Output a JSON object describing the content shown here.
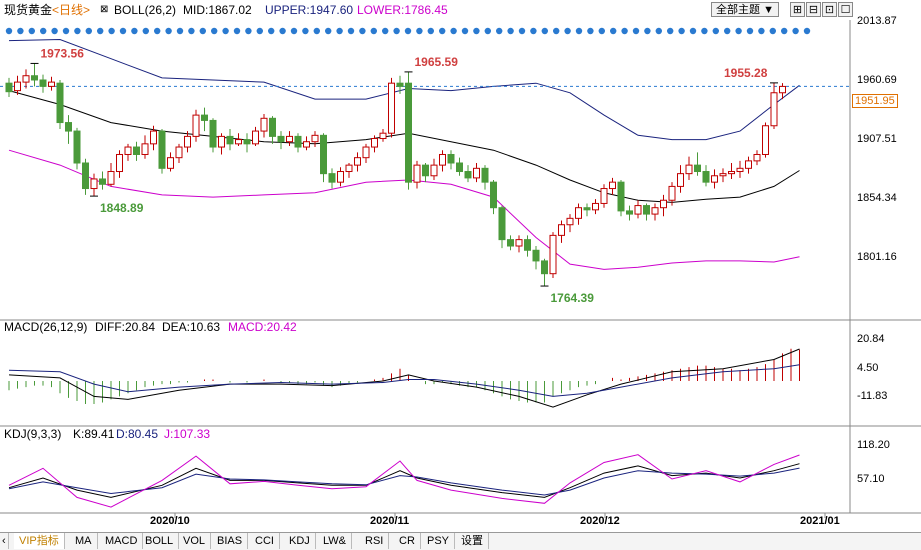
{
  "header": {
    "instrument": "现货黄金",
    "period": "<日线>",
    "indicator": "BOLL(26,2)",
    "mid": "MID:1867.02",
    "upper": "UPPER:1947.60",
    "lower": "LOWER:1786.45",
    "theme_select": "全部主题",
    "theme_chevron": "▼"
  },
  "price_axis": {
    "ticks": [
      "2013.87",
      "1960.69",
      "1907.51",
      "1854.34",
      "1801.16"
    ],
    "current": "1951.95"
  },
  "macd_header": {
    "title": "MACD(26,12,9)",
    "diff": "DIFF:20.84",
    "dea": "DEA:10.63",
    "macd": "MACD:20.42"
  },
  "macd_axis": [
    "20.84",
    "4.50",
    "-11.83"
  ],
  "kdj_header": {
    "title": "KDJ(9,3,3)",
    "k": "K:89.41",
    "d": "D:80.45",
    "j": "J:107.33"
  },
  "kdj_axis": [
    "118.20",
    "57.10"
  ],
  "date_axis": [
    "2020/10",
    "2020/11",
    "2020/12",
    "2021/01"
  ],
  "toolbar": [
    "VIP指标",
    "MA",
    "MACD",
    "BOLL",
    "VOL",
    "BIAS",
    "CCI",
    "KDJ",
    "LW&",
    "RSI",
    "CR",
    "PSY",
    "设置"
  ],
  "colors": {
    "up": "#c00000",
    "down": "#4a9a3a",
    "upper_band": "#1a237e",
    "mid_band": "#000000",
    "lower_band": "#cc00cc",
    "accent": "#e07000"
  },
  "chart_data": {
    "type": "candlestick",
    "title": "现货黄金 <日线>",
    "ylim": [
      1740,
      2020
    ],
    "annotations": [
      {
        "label": "1973.56",
        "value": 1973.56,
        "kind": "high",
        "candle_index": 3
      },
      {
        "label": "1848.89",
        "value": 1848.89,
        "kind": "low",
        "candle_index": 10
      },
      {
        "label": "1965.59",
        "value": 1965.59,
        "kind": "high",
        "candle_index": 47
      },
      {
        "label": "1764.39",
        "value": 1764.39,
        "kind": "low",
        "candle_index": 63
      },
      {
        "label": "1955.28",
        "value": 1955.28,
        "kind": "high",
        "candle_index": 90
      }
    ],
    "candles": [
      [
        1955,
        1947,
        1960,
        1942
      ],
      [
        1948,
        1956,
        1962,
        1944
      ],
      [
        1956,
        1962,
        1968,
        1950
      ],
      [
        1962,
        1958,
        1973.56,
        1952
      ],
      [
        1958,
        1952,
        1963,
        1946
      ],
      [
        1952,
        1956,
        1961,
        1948
      ],
      [
        1955,
        1918,
        1958,
        1912
      ],
      [
        1918,
        1910,
        1925,
        1898
      ],
      [
        1910,
        1880,
        1913,
        1874
      ],
      [
        1880,
        1856,
        1884,
        1850
      ],
      [
        1856,
        1865,
        1870,
        1848.89
      ],
      [
        1865,
        1860,
        1872,
        1855
      ],
      [
        1860,
        1872,
        1880,
        1858
      ],
      [
        1872,
        1888,
        1892,
        1866
      ],
      [
        1888,
        1895,
        1898,
        1882
      ],
      [
        1895,
        1888,
        1900,
        1882
      ],
      [
        1888,
        1898,
        1906,
        1884
      ],
      [
        1898,
        1910,
        1915,
        1892
      ],
      [
        1910,
        1875,
        1912,
        1870
      ],
      [
        1875,
        1885,
        1890,
        1872
      ],
      [
        1885,
        1895,
        1898,
        1880
      ],
      [
        1895,
        1905,
        1910,
        1890
      ],
      [
        1905,
        1925,
        1930,
        1900
      ],
      [
        1925,
        1920,
        1932,
        1910
      ],
      [
        1920,
        1895,
        1922,
        1890
      ],
      [
        1895,
        1905,
        1908,
        1888
      ],
      [
        1905,
        1898,
        1912,
        1892
      ],
      [
        1898,
        1902,
        1908,
        1896
      ],
      [
        1902,
        1898,
        1908,
        1890
      ],
      [
        1898,
        1910,
        1914,
        1896
      ],
      [
        1910,
        1922,
        1926,
        1904
      ],
      [
        1922,
        1905,
        1924,
        1898
      ],
      [
        1905,
        1900,
        1910,
        1893
      ],
      [
        1900,
        1905,
        1910,
        1896
      ],
      [
        1905,
        1895,
        1908,
        1890
      ],
      [
        1895,
        1900,
        1905,
        1892
      ],
      [
        1900,
        1906,
        1910,
        1895
      ],
      [
        1906,
        1870,
        1908,
        1862
      ],
      [
        1870,
        1862,
        1875,
        1856
      ],
      [
        1862,
        1872,
        1876,
        1858
      ],
      [
        1872,
        1878,
        1880,
        1866
      ],
      [
        1878,
        1885,
        1890,
        1872
      ],
      [
        1885,
        1895,
        1898,
        1880
      ],
      [
        1895,
        1903,
        1906,
        1890
      ],
      [
        1903,
        1908,
        1912,
        1900
      ],
      [
        1908,
        1955,
        1960,
        1904
      ],
      [
        1955,
        1952,
        1962,
        1945
      ],
      [
        1955,
        1862,
        1965.59,
        1855
      ],
      [
        1862,
        1878,
        1882,
        1856
      ],
      [
        1878,
        1868,
        1880,
        1862
      ],
      [
        1868,
        1878,
        1884,
        1864
      ],
      [
        1878,
        1888,
        1892,
        1872
      ],
      [
        1888,
        1880,
        1892,
        1874
      ],
      [
        1880,
        1872,
        1885,
        1868
      ],
      [
        1872,
        1866,
        1878,
        1862
      ],
      [
        1866,
        1875,
        1880,
        1862
      ],
      [
        1875,
        1862,
        1878,
        1855
      ],
      [
        1862,
        1838,
        1864,
        1832
      ],
      [
        1838,
        1808,
        1840,
        1800
      ],
      [
        1808,
        1802,
        1812,
        1798
      ],
      [
        1802,
        1808,
        1812,
        1796
      ],
      [
        1808,
        1798,
        1812,
        1792
      ],
      [
        1798,
        1788,
        1802,
        1780
      ],
      [
        1788,
        1776,
        1790,
        1764.39
      ],
      [
        1776,
        1812,
        1815,
        1772
      ],
      [
        1812,
        1822,
        1826,
        1805
      ],
      [
        1822,
        1828,
        1832,
        1815
      ],
      [
        1828,
        1838,
        1842,
        1822
      ],
      [
        1838,
        1836,
        1842,
        1830
      ],
      [
        1836,
        1842,
        1846,
        1832
      ],
      [
        1842,
        1856,
        1860,
        1838
      ],
      [
        1856,
        1862,
        1866,
        1850
      ],
      [
        1862,
        1835,
        1864,
        1830
      ],
      [
        1835,
        1832,
        1840,
        1826
      ],
      [
        1832,
        1840,
        1845,
        1828
      ],
      [
        1840,
        1832,
        1842,
        1826
      ],
      [
        1832,
        1838,
        1842,
        1826
      ],
      [
        1838,
        1845,
        1850,
        1830
      ],
      [
        1845,
        1858,
        1862,
        1840
      ],
      [
        1858,
        1870,
        1878,
        1852
      ],
      [
        1870,
        1878,
        1886,
        1864
      ],
      [
        1878,
        1872,
        1890,
        1868
      ],
      [
        1872,
        1862,
        1878,
        1858
      ],
      [
        1862,
        1868,
        1874,
        1856
      ],
      [
        1868,
        1870,
        1875,
        1862
      ],
      [
        1870,
        1872,
        1880,
        1865
      ],
      [
        1872,
        1875,
        1882,
        1866
      ],
      [
        1875,
        1882,
        1886,
        1870
      ],
      [
        1882,
        1888,
        1892,
        1878
      ],
      [
        1888,
        1915,
        1918,
        1885
      ],
      [
        1915,
        1946,
        1955.28,
        1912
      ],
      [
        1946,
        1951.95,
        1955,
        1940
      ]
    ],
    "boll": {
      "upper": [
        [
          0,
          1995
        ],
        [
          6,
          1996
        ],
        [
          12,
          1978
        ],
        [
          18,
          1960
        ],
        [
          24,
          1958
        ],
        [
          30,
          1956
        ],
        [
          36,
          1940
        ],
        [
          42,
          1940
        ],
        [
          47,
          1950
        ],
        [
          52,
          1948
        ],
        [
          57,
          1952
        ],
        [
          62,
          1955
        ],
        [
          66,
          1946
        ],
        [
          70,
          1925
        ],
        [
          74,
          1906
        ],
        [
          78,
          1902
        ],
        [
          82,
          1902
        ],
        [
          86,
          1910
        ],
        [
          90,
          1935
        ],
        [
          93,
          1953
        ]
      ],
      "mid": [
        [
          0,
          1948
        ],
        [
          6,
          1935
        ],
        [
          12,
          1918
        ],
        [
          18,
          1910
        ],
        [
          24,
          1905
        ],
        [
          30,
          1900
        ],
        [
          36,
          1898
        ],
        [
          42,
          1902
        ],
        [
          47,
          1908
        ],
        [
          52,
          1900
        ],
        [
          57,
          1892
        ],
        [
          62,
          1878
        ],
        [
          66,
          1864
        ],
        [
          70,
          1852
        ],
        [
          74,
          1845
        ],
        [
          78,
          1843
        ],
        [
          82,
          1846
        ],
        [
          86,
          1848
        ],
        [
          90,
          1858
        ],
        [
          93,
          1873
        ]
      ],
      "lower": [
        [
          0,
          1892
        ],
        [
          6,
          1878
        ],
        [
          12,
          1858
        ],
        [
          18,
          1850
        ],
        [
          24,
          1848
        ],
        [
          30,
          1850
        ],
        [
          36,
          1852
        ],
        [
          42,
          1862
        ],
        [
          47,
          1864
        ],
        [
          52,
          1860
        ],
        [
          57,
          1848
        ],
        [
          62,
          1810
        ],
        [
          66,
          1785
        ],
        [
          70,
          1780
        ],
        [
          74,
          1782
        ],
        [
          78,
          1786
        ],
        [
          82,
          1788
        ],
        [
          86,
          1788
        ],
        [
          90,
          1787
        ],
        [
          93,
          1792
        ]
      ]
    },
    "macd": {
      "ylim": [
        -28,
        28
      ],
      "diff": [
        [
          0,
          4
        ],
        [
          6,
          2
        ],
        [
          10,
          -10
        ],
        [
          14,
          -12
        ],
        [
          20,
          -6
        ],
        [
          26,
          -2
        ],
        [
          32,
          -2
        ],
        [
          38,
          -3
        ],
        [
          44,
          0
        ],
        [
          47,
          4
        ],
        [
          50,
          0
        ],
        [
          55,
          -4
        ],
        [
          60,
          -10
        ],
        [
          64,
          -17
        ],
        [
          68,
          -9
        ],
        [
          72,
          -2
        ],
        [
          78,
          6
        ],
        [
          84,
          8
        ],
        [
          90,
          14
        ],
        [
          93,
          20.84
        ]
      ],
      "dea": [
        [
          0,
          7
        ],
        [
          6,
          6
        ],
        [
          10,
          -2
        ],
        [
          14,
          -7
        ],
        [
          20,
          -4
        ],
        [
          26,
          -2
        ],
        [
          32,
          -1
        ],
        [
          38,
          -2
        ],
        [
          44,
          -1
        ],
        [
          47,
          1
        ],
        [
          50,
          1
        ],
        [
          55,
          -2
        ],
        [
          60,
          -6
        ],
        [
          64,
          -10
        ],
        [
          68,
          -8
        ],
        [
          72,
          -4
        ],
        [
          78,
          2
        ],
        [
          84,
          6
        ],
        [
          90,
          8
        ],
        [
          93,
          10.63
        ]
      ],
      "hist": [
        -6,
        -5,
        -4,
        -3,
        -3,
        -4,
        -8,
        -11,
        -13,
        -15,
        -15,
        -14,
        -12,
        -10,
        -8,
        -6,
        -4,
        -3,
        -2,
        -2,
        -1,
        -1,
        0,
        1,
        1,
        0,
        -1,
        0,
        -1,
        0,
        1,
        0,
        -1,
        -1,
        -2,
        -2,
        -1,
        -3,
        -4,
        -3,
        -2,
        -1,
        0,
        1,
        2,
        5,
        8,
        4,
        0,
        -2,
        -2,
        -1,
        -2,
        -3,
        -4,
        -4,
        -6,
        -8,
        -10,
        -12,
        -13,
        -14,
        -14,
        -14,
        -10,
        -8,
        -6,
        -4,
        -3,
        -2,
        0,
        2,
        1,
        2,
        3,
        4,
        5,
        6,
        7,
        8,
        9,
        10,
        10,
        9,
        8,
        8,
        7,
        8,
        9,
        11,
        14,
        18,
        21,
        20.42
      ]
    },
    "kdj": {
      "ylim": [
        -10,
        130
      ],
      "k": [
        [
          0,
          40
        ],
        [
          4,
          60
        ],
        [
          8,
          35
        ],
        [
          12,
          20
        ],
        [
          18,
          45
        ],
        [
          22,
          80
        ],
        [
          26,
          55
        ],
        [
          30,
          55
        ],
        [
          34,
          50
        ],
        [
          38,
          45
        ],
        [
          42,
          45
        ],
        [
          46,
          75
        ],
        [
          48,
          60
        ],
        [
          52,
          45
        ],
        [
          58,
          30
        ],
        [
          63,
          20
        ],
        [
          66,
          40
        ],
        [
          70,
          70
        ],
        [
          74,
          85
        ],
        [
          78,
          65
        ],
        [
          82,
          70
        ],
        [
          86,
          60
        ],
        [
          90,
          75
        ],
        [
          93,
          89.41
        ]
      ],
      "d": [
        [
          0,
          38
        ],
        [
          4,
          52
        ],
        [
          8,
          40
        ],
        [
          12,
          28
        ],
        [
          18,
          40
        ],
        [
          22,
          68
        ],
        [
          26,
          58
        ],
        [
          30,
          56
        ],
        [
          34,
          52
        ],
        [
          38,
          48
        ],
        [
          42,
          46
        ],
        [
          46,
          65
        ],
        [
          48,
          62
        ],
        [
          52,
          50
        ],
        [
          58,
          35
        ],
        [
          63,
          25
        ],
        [
          66,
          35
        ],
        [
          70,
          60
        ],
        [
          74,
          75
        ],
        [
          78,
          70
        ],
        [
          82,
          68
        ],
        [
          86,
          64
        ],
        [
          90,
          70
        ],
        [
          93,
          80.45
        ]
      ],
      "j": [
        [
          0,
          45
        ],
        [
          4,
          80
        ],
        [
          8,
          20
        ],
        [
          12,
          0
        ],
        [
          18,
          55
        ],
        [
          22,
          105
        ],
        [
          26,
          48
        ],
        [
          30,
          53
        ],
        [
          34,
          45
        ],
        [
          38,
          38
        ],
        [
          42,
          42
        ],
        [
          46,
          95
        ],
        [
          48,
          55
        ],
        [
          52,
          35
        ],
        [
          58,
          18
        ],
        [
          63,
          8
        ],
        [
          66,
          50
        ],
        [
          70,
          92
        ],
        [
          74,
          108
        ],
        [
          78,
          58
        ],
        [
          82,
          75
        ],
        [
          86,
          52
        ],
        [
          90,
          88
        ],
        [
          93,
          107.33
        ]
      ]
    }
  }
}
